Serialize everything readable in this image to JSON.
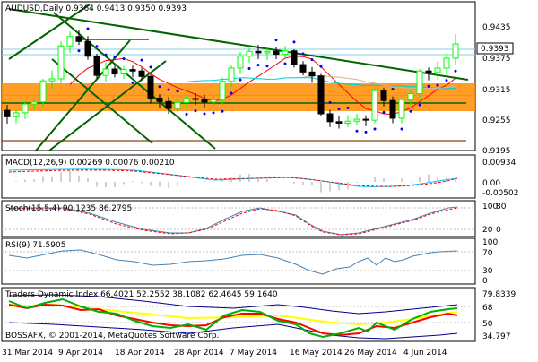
{
  "window": {
    "header": "AUDUSD,Daily  0.9364 0.9413 0.9350 0.9393",
    "copyright": "BOSSAFX, © 2001-2014, MetaQuotes Software Corp."
  },
  "panels": {
    "price": {
      "y_ticks": [
        "0.9435",
        "0.9375",
        "0.9315",
        "0.9255",
        "0.9195"
      ],
      "current_price": "0.9393"
    },
    "macd": {
      "header": "MACD(12,26,9) 0.00269 0.00076 0.00210",
      "y_ticks": [
        "0.00934",
        "0.00",
        "-0.00502"
      ]
    },
    "stoch": {
      "header": "Stoch(15,5,4) 90.1235 86.2795",
      "y_ticks": [
        "100",
        "80",
        "20",
        "0"
      ]
    },
    "rsi": {
      "header": "RSI(9) 71.5905",
      "y_ticks": [
        "100",
        "70",
        "30",
        "0"
      ]
    },
    "tdi": {
      "header": "Traders Dynamic Index 66.4021 52.2552 38.1082 62.4645 59.1640",
      "y_ticks": [
        "79.8339",
        "68",
        "50",
        "34.797"
      ]
    }
  },
  "x_axis": [
    "31 Mar 2014",
    "9 Apr 2014",
    "18 Apr 2014",
    "28 Apr 2014",
    "7 May 2014",
    "16 May 2014",
    "26 May 2014",
    "4 Jun 2014"
  ],
  "colors": {
    "up_candle": "#00ff00",
    "down_candle": "#000000",
    "trendline": "#006400",
    "zone": "#ff8c00",
    "support": "#8b4513",
    "psar": "#0000ff",
    "hline": "#87ceeb",
    "ma_fast": "#ff0000",
    "ma_mid": "#00ced1",
    "ma_slow": "#d2b48c",
    "macd_line": "#00bfff",
    "macd_signal": "#ff0000",
    "stoch_main": "#4682b4",
    "stoch_signal": "#ff0000",
    "rsi": "#4682b4",
    "tdi_green": "#00b000",
    "tdi_red": "#ff0000",
    "tdi_yellow": "#ffff00",
    "tdi_band": "#00008b"
  },
  "chart_data": [
    {
      "type": "candlestick",
      "title": "AUDUSD,Daily",
      "ylim": [
        0.918,
        0.9475
      ],
      "categories": [
        "31 Mar 2014",
        "1 Apr 2014",
        "2 Apr 2014",
        "3 Apr 2014",
        "4 Apr 2014",
        "7 Apr 2014",
        "8 Apr 2014",
        "9 Apr 2014",
        "10 Apr 2014",
        "11 Apr 2014",
        "14 Apr 2014",
        "15 Apr 2014",
        "16 Apr 2014",
        "17 Apr 2014",
        "18 Apr 2014",
        "21 Apr 2014",
        "22 Apr 2014",
        "23 Apr 2014",
        "24 Apr 2014",
        "25 Apr 2014",
        "28 Apr 2014",
        "29 Apr 2014",
        "30 Apr 2014",
        "1 May 2014",
        "2 May 2014",
        "5 May 2014",
        "6 May 2014",
        "7 May 2014",
        "8 May 2014",
        "9 May 2014",
        "12 May 2014",
        "13 May 2014",
        "14 May 2014",
        "15 May 2014",
        "16 May 2014",
        "19 May 2014",
        "20 May 2014",
        "21 May 2014",
        "22 May 2014",
        "23 May 2014",
        "26 May 2014",
        "27 May 2014",
        "28 May 2014",
        "29 May 2014",
        "30 May 2014",
        "2 Jun 2014",
        "3 Jun 2014",
        "4 Jun 2014",
        "5 Jun 2014",
        "6 Jun 2014",
        "9 Jun 2014"
      ],
      "open": [
        0.9258,
        0.9245,
        0.9253,
        0.9271,
        0.9275,
        0.9318,
        0.9322,
        0.9389,
        0.9408,
        0.9398,
        0.9368,
        0.9329,
        0.9342,
        0.9332,
        0.9341,
        0.9338,
        0.9327,
        0.9283,
        0.9276,
        0.9262,
        0.9274,
        0.9282,
        0.9281,
        0.9275,
        0.9279,
        0.9317,
        0.9344,
        0.9368,
        0.9378,
        0.9375,
        0.9378,
        0.9372,
        0.9379,
        0.9351,
        0.9336,
        0.9328,
        0.9251,
        0.9235,
        0.9232,
        0.9236,
        0.924,
        0.9238,
        0.9298,
        0.9278,
        0.9242,
        0.928,
        0.9292,
        0.9338,
        0.9335,
        0.9344,
        0.9364
      ],
      "high": [
        0.9269,
        0.926,
        0.9278,
        0.9282,
        0.9322,
        0.9339,
        0.9398,
        0.9418,
        0.9421,
        0.9409,
        0.9373,
        0.9356,
        0.9351,
        0.9348,
        0.9349,
        0.9345,
        0.9331,
        0.9291,
        0.9285,
        0.9282,
        0.9289,
        0.9293,
        0.929,
        0.9288,
        0.9325,
        0.9351,
        0.9377,
        0.9385,
        0.9391,
        0.9386,
        0.9386,
        0.9389,
        0.9382,
        0.9358,
        0.9346,
        0.9332,
        0.9259,
        0.9246,
        0.9248,
        0.9251,
        0.9248,
        0.9302,
        0.9304,
        0.9286,
        0.9283,
        0.9299,
        0.9342,
        0.9345,
        0.9358,
        0.9373,
        0.9413
      ],
      "low": [
        0.9231,
        0.9232,
        0.924,
        0.9259,
        0.9262,
        0.9302,
        0.9311,
        0.9375,
        0.9391,
        0.9361,
        0.9322,
        0.9316,
        0.9325,
        0.9322,
        0.9326,
        0.9319,
        0.9272,
        0.9264,
        0.9251,
        0.9254,
        0.9262,
        0.9269,
        0.9263,
        0.9265,
        0.9268,
        0.9305,
        0.9332,
        0.9355,
        0.9362,
        0.936,
        0.9362,
        0.9365,
        0.9345,
        0.9329,
        0.9314,
        0.9246,
        0.9224,
        0.9221,
        0.9224,
        0.9228,
        0.9226,
        0.9232,
        0.9266,
        0.9232,
        0.9232,
        0.9268,
        0.9281,
        0.9319,
        0.9321,
        0.9331,
        0.935
      ],
      "close": [
        0.9245,
        0.9253,
        0.9271,
        0.9275,
        0.9318,
        0.9322,
        0.9389,
        0.9408,
        0.9398,
        0.9368,
        0.9329,
        0.9342,
        0.9332,
        0.9341,
        0.9338,
        0.9327,
        0.9283,
        0.9276,
        0.9262,
        0.9274,
        0.9282,
        0.9281,
        0.9275,
        0.9279,
        0.9317,
        0.9344,
        0.9368,
        0.9378,
        0.9375,
        0.9378,
        0.9372,
        0.9379,
        0.9351,
        0.9336,
        0.9328,
        0.9251,
        0.9235,
        0.9232,
        0.9236,
        0.924,
        0.9238,
        0.9298,
        0.9278,
        0.9242,
        0.928,
        0.9292,
        0.9338,
        0.9335,
        0.9344,
        0.9364,
        0.9393
      ]
    }
  ]
}
